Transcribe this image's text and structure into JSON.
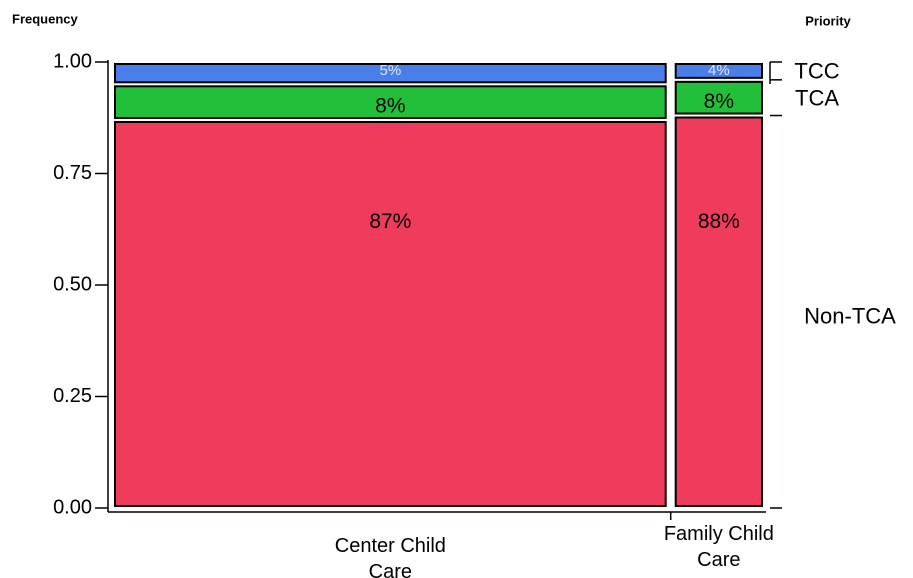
{
  "chart_data": {
    "type": "mosaic",
    "y_axis_title": "Frequency",
    "legend_title": "Priority",
    "categories": [
      "Center Child Care",
      "Family Child Care"
    ],
    "category_shares": [
      0.86,
      0.14
    ],
    "series": [
      {
        "name": "Non-TCA",
        "color": "#ef3b5c",
        "values": [
          0.87,
          0.88
        ],
        "value_labels": [
          "87%",
          "88%"
        ]
      },
      {
        "name": "TCA",
        "color": "#22c03a",
        "values": [
          0.08,
          0.08
        ],
        "value_labels": [
          "8%",
          "8%"
        ]
      },
      {
        "name": "TCC",
        "color": "#4a7ee8",
        "values": [
          0.05,
          0.04
        ],
        "value_labels": [
          "5%",
          "4%"
        ]
      }
    ],
    "ylim": [
      0,
      1
    ],
    "yticks": [
      {
        "value": 0,
        "label": "0.00"
      },
      {
        "value": 0.25,
        "label": "0.25"
      },
      {
        "value": 0.5,
        "label": "0.50"
      },
      {
        "value": 0.75,
        "label": "0.75"
      },
      {
        "value": 1,
        "label": "1.00"
      }
    ]
  }
}
